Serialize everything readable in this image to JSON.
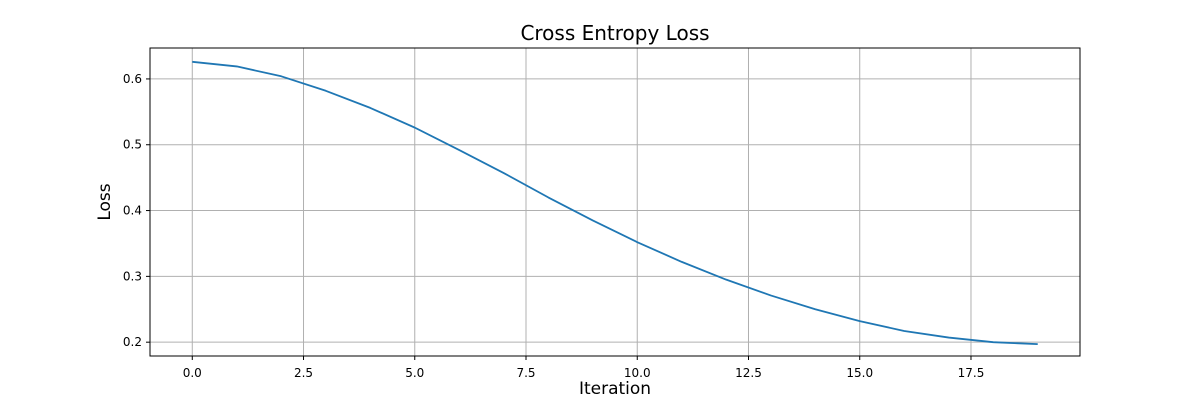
{
  "chart_data": {
    "type": "line",
    "title": "Cross Entropy Loss",
    "xlabel": "Iteration",
    "ylabel": "Loss",
    "xlim": [
      -0.95,
      19.95
    ],
    "ylim": [
      0.179,
      0.647
    ],
    "grid": true,
    "x_ticks": [
      {
        "value": 0.0,
        "label": "0.0"
      },
      {
        "value": 2.5,
        "label": "2.5"
      },
      {
        "value": 5.0,
        "label": "5.0"
      },
      {
        "value": 7.5,
        "label": "7.5"
      },
      {
        "value": 10.0,
        "label": "10.0"
      },
      {
        "value": 12.5,
        "label": "12.5"
      },
      {
        "value": 15.0,
        "label": "15.0"
      },
      {
        "value": 17.5,
        "label": "17.5"
      }
    ],
    "y_ticks": [
      {
        "value": 0.2,
        "label": "0.2"
      },
      {
        "value": 0.3,
        "label": "0.3"
      },
      {
        "value": 0.4,
        "label": "0.4"
      },
      {
        "value": 0.5,
        "label": "0.5"
      },
      {
        "value": 0.6,
        "label": "0.6"
      }
    ],
    "series": [
      {
        "color": "#1f77b4",
        "x": [
          0,
          1,
          2,
          3,
          4,
          5,
          6,
          7,
          8,
          9,
          10,
          11,
          12,
          13,
          14,
          15,
          16,
          17,
          18,
          19
        ],
        "values": [
          0.626,
          0.619,
          0.604,
          0.582,
          0.556,
          0.526,
          0.492,
          0.457,
          0.42,
          0.385,
          0.352,
          0.322,
          0.295,
          0.271,
          0.25,
          0.232,
          0.217,
          0.207,
          0.2,
          0.197
        ]
      }
    ]
  }
}
